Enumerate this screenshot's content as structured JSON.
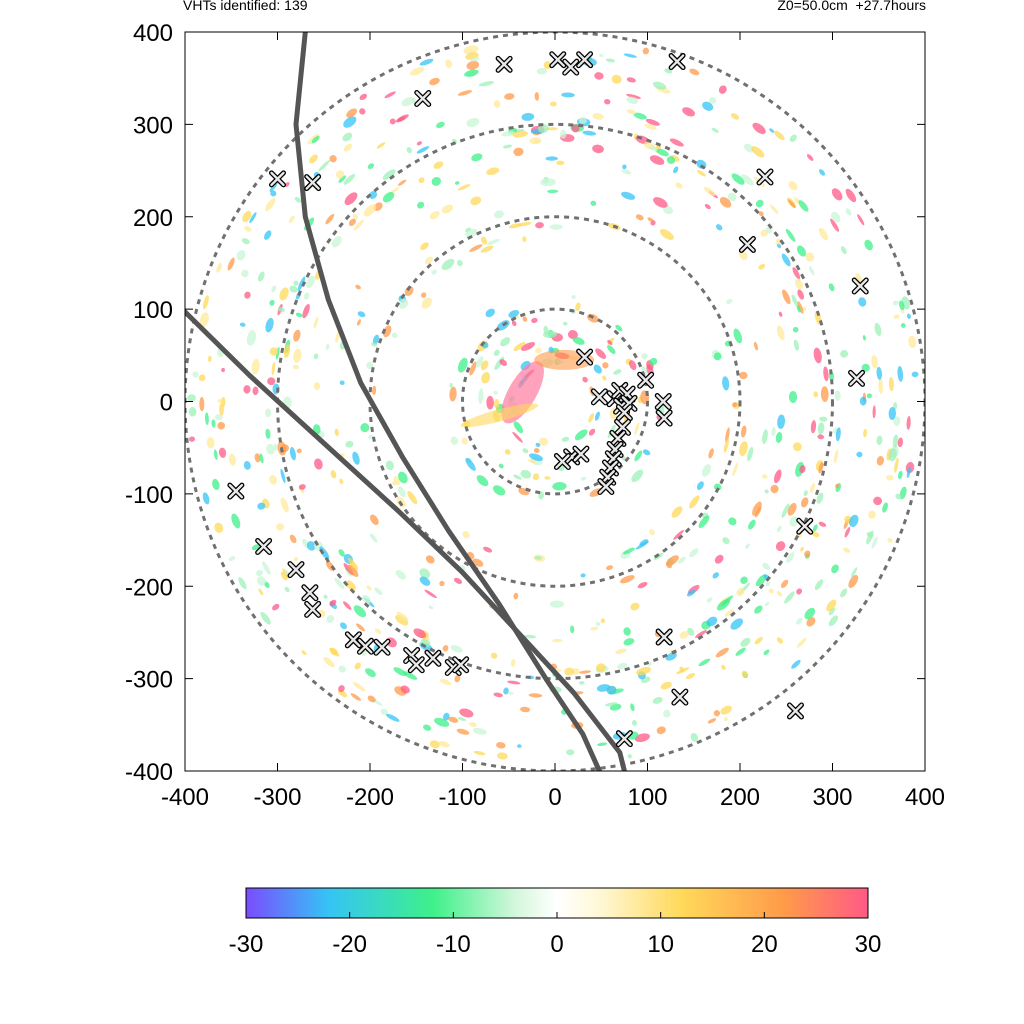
{
  "header": {
    "left_text": "VHTs identified: 139",
    "right_text": "Z0=50.0cm  +27.7hours"
  },
  "chart_data": {
    "type": "scatter",
    "xlim": [
      -400,
      400
    ],
    "ylim": [
      -400,
      400
    ],
    "xticks": [
      -400,
      -300,
      -200,
      -100,
      0,
      100,
      200,
      300,
      400
    ],
    "yticks": [
      -400,
      -300,
      -200,
      -100,
      0,
      100,
      200,
      300,
      400
    ],
    "range_rings": [
      100,
      200,
      300,
      400
    ],
    "ring_color": "#707070",
    "track_color": "#555555",
    "tracks": [
      [
        [
          -400,
          97
        ],
        [
          -330,
          28
        ],
        [
          -250,
          -45
        ],
        [
          -170,
          -118
        ],
        [
          -100,
          -185
        ],
        [
          -40,
          -250
        ],
        [
          20,
          -315
        ],
        [
          70,
          -380
        ],
        [
          75,
          -400
        ]
      ],
      [
        [
          -270,
          400
        ],
        [
          -280,
          300
        ],
        [
          -270,
          200
        ],
        [
          -245,
          110
        ],
        [
          -210,
          20
        ],
        [
          -165,
          -60
        ],
        [
          -115,
          -140
        ],
        [
          -60,
          -220
        ],
        [
          -10,
          -300
        ],
        [
          30,
          -360
        ],
        [
          48,
          -400
        ]
      ]
    ],
    "vht_markers": [
      [
        3,
        370
      ],
      [
        17,
        362
      ],
      [
        32,
        370
      ],
      [
        -55,
        365
      ],
      [
        132,
        368
      ],
      [
        -143,
        328
      ],
      [
        -300,
        241
      ],
      [
        -262,
        237
      ],
      [
        227,
        243
      ],
      [
        208,
        170
      ],
      [
        330,
        125
      ],
      [
        326,
        25
      ],
      [
        32,
        48
      ],
      [
        48,
        5
      ],
      [
        98,
        23
      ],
      [
        65,
        3
      ],
      [
        70,
        12
      ],
      [
        78,
        8
      ],
      [
        72,
        -5
      ],
      [
        80,
        -2
      ],
      [
        75,
        -12
      ],
      [
        73,
        -28
      ],
      [
        68,
        -40
      ],
      [
        65,
        -52
      ],
      [
        63,
        -62
      ],
      [
        60,
        -72
      ],
      [
        57,
        -82
      ],
      [
        55,
        -92
      ],
      [
        117,
        0
      ],
      [
        118,
        -18
      ],
      [
        18,
        -60
      ],
      [
        28,
        -57
      ],
      [
        8,
        -65
      ],
      [
        -345,
        -97
      ],
      [
        -315,
        -157
      ],
      [
        -280,
        -182
      ],
      [
        -265,
        -207
      ],
      [
        -262,
        -225
      ],
      [
        -218,
        -258
      ],
      [
        -205,
        -265
      ],
      [
        -187,
        -266
      ],
      [
        -155,
        -275
      ],
      [
        -150,
        -285
      ],
      [
        -132,
        -278
      ],
      [
        -110,
        -288
      ],
      [
        -102,
        -285
      ],
      [
        270,
        -135
      ],
      [
        118,
        -255
      ],
      [
        135,
        -320
      ],
      [
        75,
        -365
      ],
      [
        260,
        -335
      ]
    ],
    "colorbar": {
      "ticks": [
        -30,
        -20,
        -10,
        0,
        10,
        20,
        30
      ],
      "range": [
        -30,
        30
      ],
      "stops": [
        [
          -30,
          "#7a4cff"
        ],
        [
          -22,
          "#35c4f5"
        ],
        [
          -12,
          "#3ef08a"
        ],
        [
          -4,
          "#d4f7dc"
        ],
        [
          0,
          "#ffffff"
        ],
        [
          4,
          "#fff8d8"
        ],
        [
          12,
          "#ffd95a"
        ],
        [
          22,
          "#ff9a4a"
        ],
        [
          30,
          "#ff5a86"
        ]
      ]
    }
  }
}
